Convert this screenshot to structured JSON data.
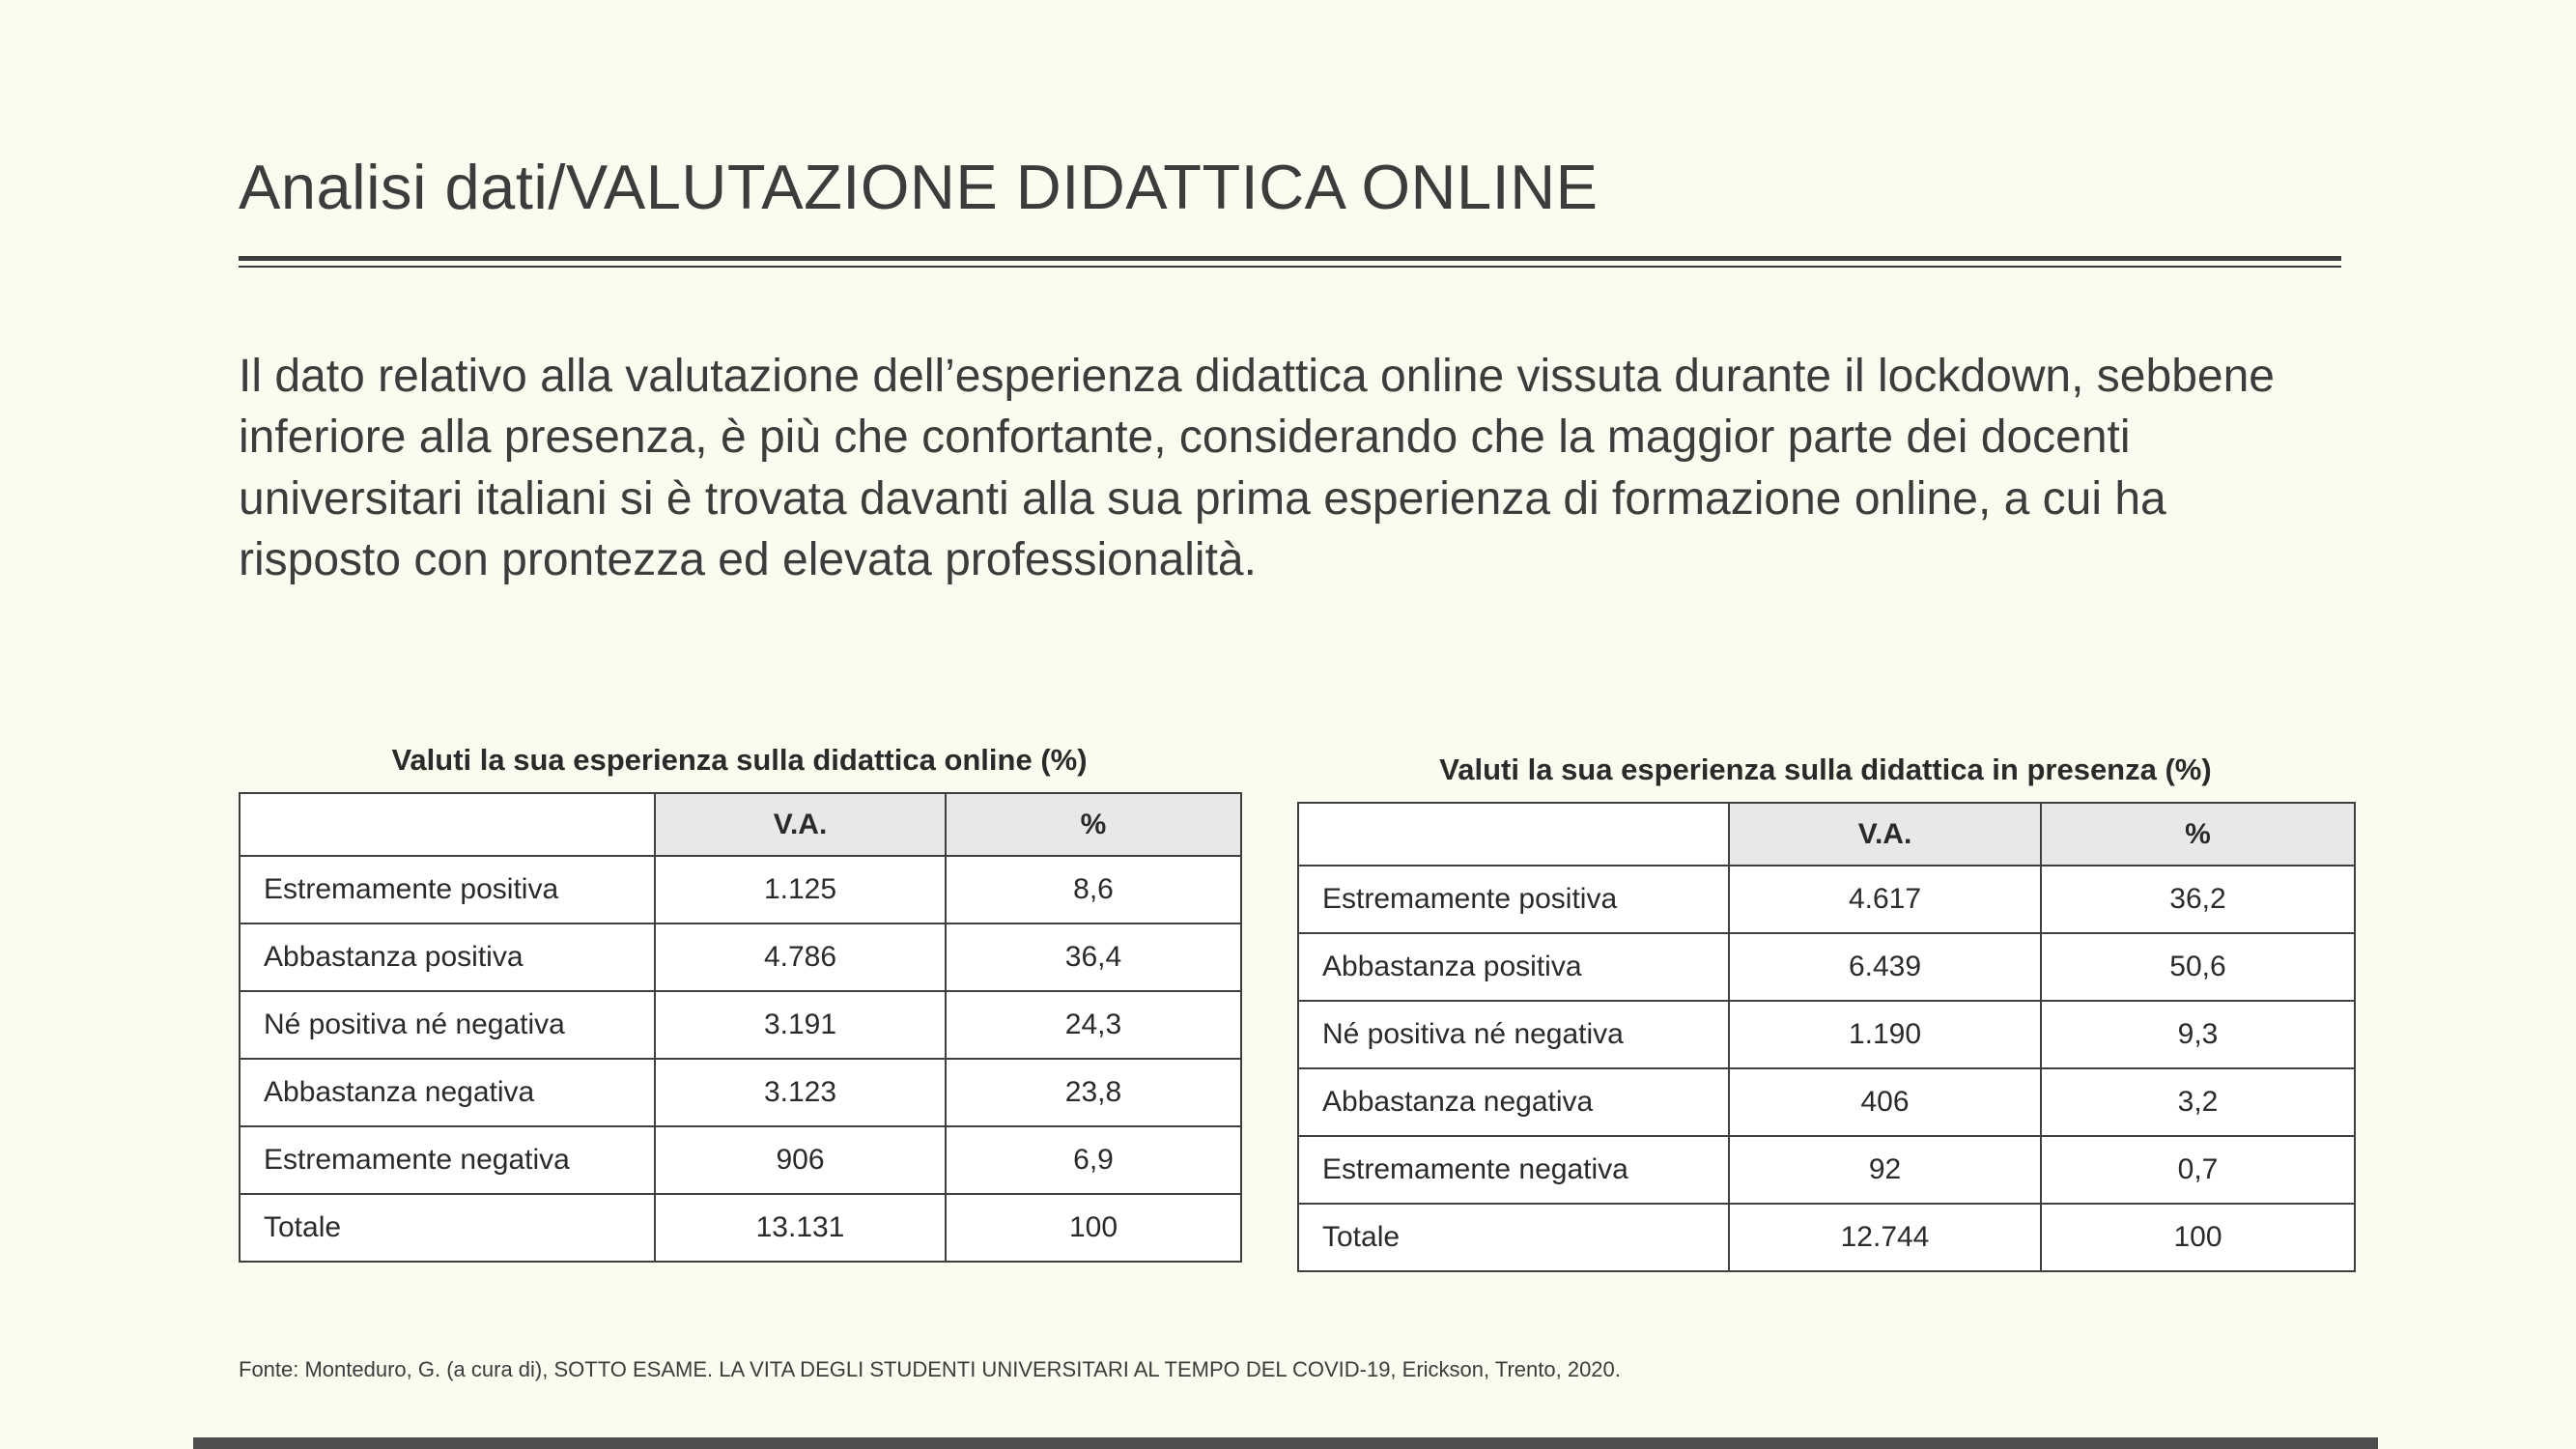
{
  "slide": {
    "title": "Analisi dati/VALUTAZIONE DIDATTICA ONLINE",
    "body": "Il dato relativo alla valutazione dell’esperienza didattica online vissuta durante il lockdown, sebbene inferiore alla presenza, è più che confortante, considerando che la maggior parte dei docenti universitari italiani si è trovata davanti alla sua prima esperienza di formazione online, a cui ha risposto con prontezza ed elevata professionalità.",
    "source": "Fonte: Monteduro, G. (a cura di), SOTTO ESAME. LA VITA DEGLI STUDENTI UNIVERSITARI AL TEMPO DEL COVID-19, Erickson, Trento, 2020."
  },
  "colors": {
    "background": "#FBFBEF",
    "text": "#3C3C3C",
    "table_header_bg": "#E8E8E8",
    "table_border": "#3F3F3F",
    "bottom_bar": "#4E4E4E"
  },
  "tables": {
    "online": {
      "title": "Valuti la sua esperienza sulla didattica online (%)",
      "columns": [
        "",
        "V.A.",
        "%"
      ],
      "rows": [
        {
          "label": "Estremamente positiva",
          "va": "1.125",
          "pct": "8,6"
        },
        {
          "label": "Abbastanza positiva",
          "va": "4.786",
          "pct": "36,4"
        },
        {
          "label": "Né positiva né negativa",
          "va": "3.191",
          "pct": "24,3"
        },
        {
          "label": "Abbastanza negativa",
          "va": "3.123",
          "pct": "23,8"
        },
        {
          "label": "Estremamente negativa",
          "va": "906",
          "pct": "6,9"
        },
        {
          "label": "Totale",
          "va": "13.131",
          "pct": "100"
        }
      ]
    },
    "presenza": {
      "title": "Valuti la sua esperienza sulla didattica in presenza (%)",
      "columns": [
        "",
        "V.A.",
        "%"
      ],
      "rows": [
        {
          "label": "Estremamente positiva",
          "va": "4.617",
          "pct": "36,2"
        },
        {
          "label": "Abbastanza positiva",
          "va": "6.439",
          "pct": "50,6"
        },
        {
          "label": "Né positiva né negativa",
          "va": "1.190",
          "pct": "9,3"
        },
        {
          "label": "Abbastanza negativa",
          "va": "406",
          "pct": "3,2"
        },
        {
          "label": "Estremamente negativa",
          "va": "92",
          "pct": "0,7"
        },
        {
          "label": "Totale",
          "va": "12.744",
          "pct": "100"
        }
      ]
    }
  }
}
